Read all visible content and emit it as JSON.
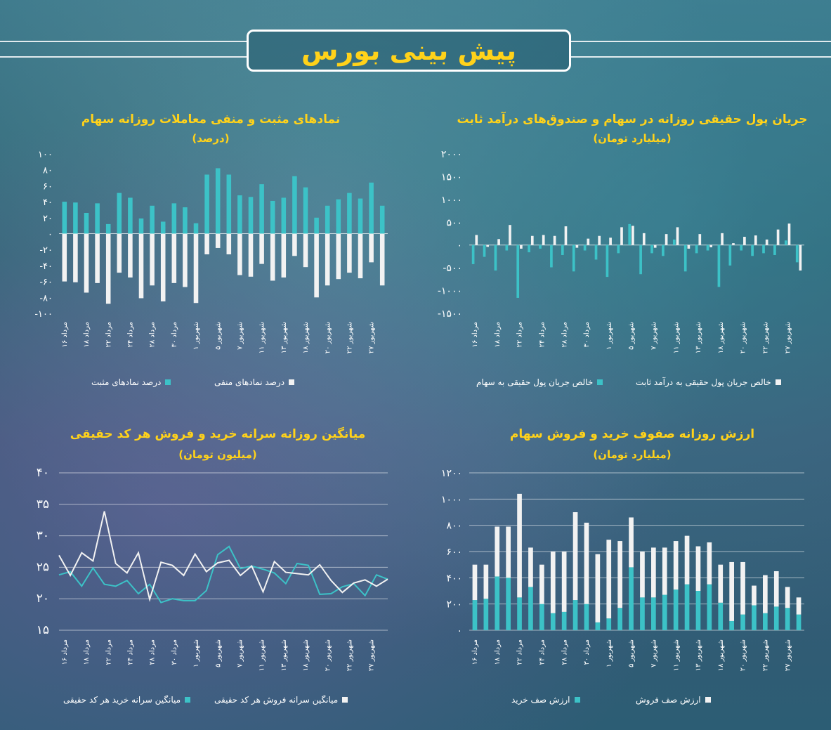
{
  "banner": {
    "title": "پیش بینی بورس"
  },
  "colors": {
    "teal": "#3cc2c7",
    "white": "#f2f2f2",
    "title": "#ffd21a"
  },
  "dates": [
    "۱۶ مرداد",
    "۱۸ مرداد",
    "۲۲ مرداد",
    "۲۴ مرداد",
    "۲۸ مرداد",
    "۳۰ مرداد",
    "۱ شهریور",
    "۵ شهریور",
    "۷ شهریور",
    "۱۱ شهریور",
    "۱۳ شهریور",
    "۱۸ شهریور",
    "۲۰ شهریور",
    "۲۲ شهریور",
    "۲۷ شهریور"
  ],
  "chart_data": [
    {
      "id": "positive_negative",
      "type": "bar",
      "title": "نمادهای مثبت و منفی معاملات روزانه سهام",
      "subtitle": "(درصد)",
      "ylim": [
        -100,
        100
      ],
      "yticks": [
        100,
        80,
        60,
        40,
        20,
        0,
        -20,
        -40,
        -60,
        -80,
        -100
      ],
      "ytick_labels": [
        "۱۰۰",
        "۸۰",
        "۶۰",
        "۴۰",
        "۲۰",
        "۰",
        "-۲۰",
        "-۴۰",
        "-۶۰",
        "-۸۰",
        "-۱۰۰"
      ],
      "series": [
        {
          "name": "درصد نمادهای مثبت",
          "color": "#3cc2c7",
          "values": [
            40,
            39,
            26,
            38,
            12,
            51,
            45,
            19,
            35,
            15,
            38,
            33,
            13,
            74,
            82,
            74,
            48,
            46,
            62,
            41,
            45,
            72,
            58,
            20,
            35,
            43,
            51,
            44,
            64,
            35
          ]
        },
        {
          "name": "درصد نمادهای منفی",
          "color": "#f2f2f2",
          "values": [
            -60,
            -61,
            -74,
            -62,
            -88,
            -49,
            -55,
            -81,
            -65,
            -85,
            -62,
            -67,
            -87,
            -26,
            -18,
            -26,
            -52,
            -54,
            -38,
            -59,
            -55,
            -28,
            -42,
            -80,
            -65,
            -57,
            -49,
            -56,
            -36,
            -65
          ]
        }
      ]
    },
    {
      "id": "money_flow",
      "type": "bar",
      "title": "جریان پول حقیقی روزانه در سهام و صندوق‌های درآمد ثابت",
      "subtitle": "(میلیارد تومان)",
      "ylim": [
        -1500,
        2000
      ],
      "yticks": [
        2000,
        1500,
        1000,
        500,
        0,
        -500,
        -1000,
        -1500
      ],
      "ytick_labels": [
        "۲۰۰۰",
        "۱۵۰۰",
        "۱۰۰۰",
        "۵۰۰",
        "۰",
        "-۵۰۰",
        "-۱۰۰۰",
        "-۱۵۰۰"
      ],
      "series": [
        {
          "name": "خالص جریان پول حقیقی به سهام",
          "color": "#3cc2c7",
          "values": [
            -420,
            -260,
            -560,
            -120,
            -1160,
            -160,
            -80,
            -490,
            -220,
            -580,
            -120,
            -320,
            -700,
            -180,
            460,
            -640,
            -180,
            -240,
            120,
            -580,
            -180,
            -120,
            -920,
            -450,
            -120,
            -240,
            -180,
            -220,
            100,
            -380
          ]
        },
        {
          "name": "خالص جریان پول حقیقی به درآمد ثابت",
          "color": "#f2f2f2",
          "values": [
            220,
            -40,
            130,
            440,
            -80,
            200,
            220,
            200,
            410,
            -60,
            140,
            200,
            160,
            390,
            420,
            260,
            -60,
            240,
            390,
            -80,
            240,
            -50,
            260,
            40,
            180,
            210,
            120,
            340,
            470,
            -560
          ]
        }
      ]
    },
    {
      "id": "per_capita",
      "type": "line",
      "title": "میانگین روزانه سرانه خرید و فروش هر کد حقیقی",
      "subtitle": "(میلیون تومان)",
      "ylim": [
        15,
        40
      ],
      "yticks": [
        40,
        35,
        30,
        25,
        20,
        15
      ],
      "ytick_labels": [
        "۴۰",
        "۳۵",
        "۳۰",
        "۲۵",
        "۲۰",
        "۱۵"
      ],
      "series": [
        {
          "name": "میانگین سرانه خرید هر کد حقیقی",
          "color": "#3cc2c7",
          "values": [
            23.8,
            24.3,
            22.0,
            24.9,
            22.3,
            22.0,
            22.9,
            20.8,
            22.3,
            19.4,
            20.0,
            19.7,
            19.7,
            21.3,
            27.0,
            28.3,
            24.8,
            25.2,
            24.7,
            24.1,
            22.4,
            25.6,
            25.3,
            20.7,
            20.8,
            21.9,
            22.4,
            20.5,
            23.8,
            23.1
          ]
        },
        {
          "name": "میانگین سرانه فروش هر کد حقیقی",
          "color": "#f2f2f2",
          "values": [
            26.9,
            23.7,
            27.3,
            26.0,
            33.9,
            25.6,
            24.1,
            27.3,
            19.9,
            25.8,
            25.3,
            23.7,
            27.1,
            24.3,
            25.7,
            26.1,
            23.7,
            25.2,
            21.1,
            25.9,
            24.2,
            24.0,
            23.8,
            25.4,
            22.9,
            21.0,
            22.5,
            23.0,
            22.0,
            23.1
          ]
        }
      ]
    },
    {
      "id": "queues",
      "type": "bar",
      "title": "ارزش روزانه صفوف خرید و فروش سهام",
      "subtitle": "(میلیارد تومان)",
      "ylim": [
        0,
        1200
      ],
      "yticks": [
        1200,
        1000,
        800,
        600,
        400,
        200,
        0
      ],
      "ytick_labels": [
        "۱۲۰۰",
        "۱۰۰۰",
        "۸۰۰",
        "۶۰۰",
        "۴۰۰",
        "۲۰۰",
        "۰"
      ],
      "stacked": true,
      "series": [
        {
          "name": "ارزش صف خرید",
          "color": "#3cc2c7",
          "values": [
            230,
            240,
            410,
            400,
            250,
            330,
            200,
            130,
            140,
            230,
            200,
            60,
            90,
            170,
            480,
            250,
            250,
            270,
            310,
            350,
            300,
            350,
            210,
            70,
            120,
            190,
            130,
            180,
            170,
            120
          ]
        },
        {
          "name": "ارزش صف فروش",
          "color": "#f2f2f2",
          "values": [
            270,
            260,
            380,
            390,
            790,
            300,
            300,
            470,
            460,
            670,
            620,
            520,
            600,
            510,
            380,
            350,
            380,
            360,
            370,
            370,
            340,
            320,
            290,
            450,
            400,
            150,
            290,
            270,
            160,
            130
          ]
        }
      ]
    }
  ]
}
